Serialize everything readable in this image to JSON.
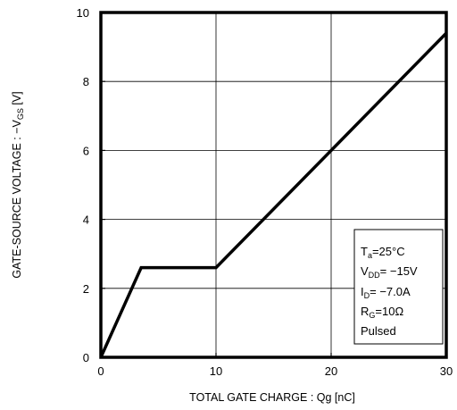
{
  "chart_data": {
    "type": "line",
    "xlabel": "TOTAL GATE CHARGE : Qg  [nC]",
    "ylabel_main": "GATE-SOURCE VOLTAGE : −V",
    "ylabel_sub": "GS",
    "ylabel_unit": " [V]",
    "xlim": [
      0,
      30
    ],
    "ylim": [
      0,
      10
    ],
    "x_ticks": [
      "0",
      "10",
      "20",
      "30"
    ],
    "y_ticks": [
      "0",
      "2",
      "4",
      "6",
      "8",
      "10"
    ],
    "grid": true,
    "series": [
      {
        "x": [
          0,
          3.5,
          10,
          30
        ],
        "y": [
          0,
          2.6,
          2.6,
          9.4
        ]
      }
    ],
    "annotation": {
      "ta_main": "T",
      "ta_sub": "a",
      "ta_rest": "=25°C",
      "vdd_main": "V",
      "vdd_sub": "DD",
      "vdd_rest": "= −15V",
      "id_main": "I",
      "id_sub": "D",
      "id_rest": "= −7.0A",
      "rg_main": "R",
      "rg_sub": "G",
      "rg_rest": "=10Ω",
      "pulsed": "Pulsed"
    }
  }
}
